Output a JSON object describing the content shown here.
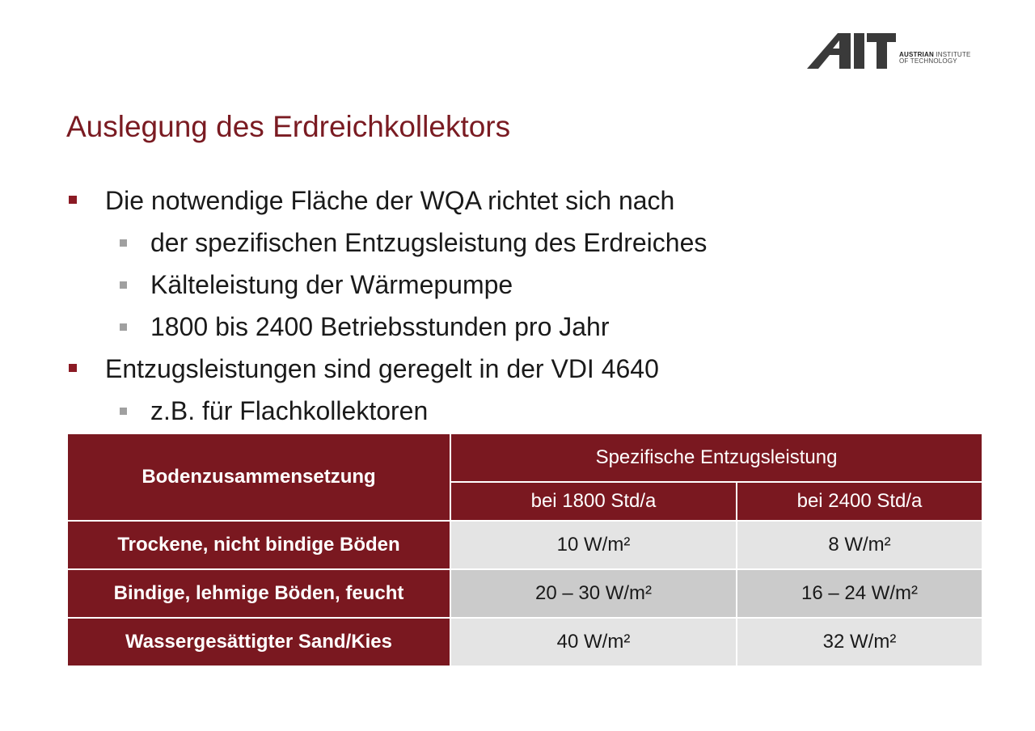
{
  "logo": {
    "mark": "AIT",
    "line1_bold": "AUSTRIAN",
    "line1_rest": "INSTITUTE",
    "line2": "OF TECHNOLOGY"
  },
  "title": "Auslegung des Erdreichkollektors",
  "bullets": [
    {
      "level": 1,
      "text": "Die notwendige Fläche der WQA richtet sich nach"
    },
    {
      "level": 2,
      "text": "der spezifischen Entzugsleistung des Erdreiches"
    },
    {
      "level": 2,
      "text": "Kälteleistung der Wärmepumpe"
    },
    {
      "level": 2,
      "text": "1800 bis 2400 Betriebsstunden pro Jahr"
    },
    {
      "level": 1,
      "text": "Entzugsleistungen sind geregelt in der VDI 4640"
    },
    {
      "level": 2,
      "text": "z.B. für Flachkollektoren"
    }
  ],
  "table": {
    "header_soil": "Bodenzusammensetzung",
    "header_group": "Spezifische Entzugsleistung",
    "header_col1": "bei 1800 Std/a",
    "header_col2": "bei 2400 Std/a",
    "rows": [
      {
        "label": "Trockene, nicht bindige Böden",
        "v1800": "10 W/m²",
        "v2400": "8 W/m²"
      },
      {
        "label": "Bindige, lehmige Böden, feucht",
        "v1800": "20 – 30 W/m²",
        "v2400": "16 – 24 W/m²"
      },
      {
        "label": "Wassergesättigter Sand/Kies",
        "v1800": "40 W/m²",
        "v2400": "32 W/m²"
      }
    ]
  },
  "colors": {
    "accent": "#7a1b22",
    "header_bg": "#7a1820",
    "cell_light": "#e4e4e4",
    "cell_dark": "#cbcbcb",
    "sub_bullet": "#a0a0a0"
  }
}
